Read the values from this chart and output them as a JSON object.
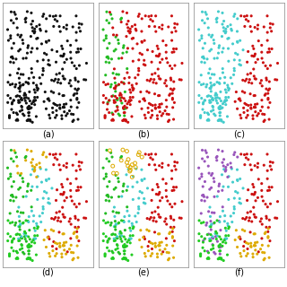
{
  "label_fontsize": 7,
  "subplot_labels": [
    "(a)",
    "(b)",
    "(c)",
    "(d)",
    "(e)",
    "(f)"
  ],
  "colors": {
    "black": "#111111",
    "red": "#cc1111",
    "green": "#22bb22",
    "cyan": "#44cccc",
    "gold": "#ddaa00",
    "purple": "#9955bb",
    "lightgreen": "#22cc22"
  }
}
